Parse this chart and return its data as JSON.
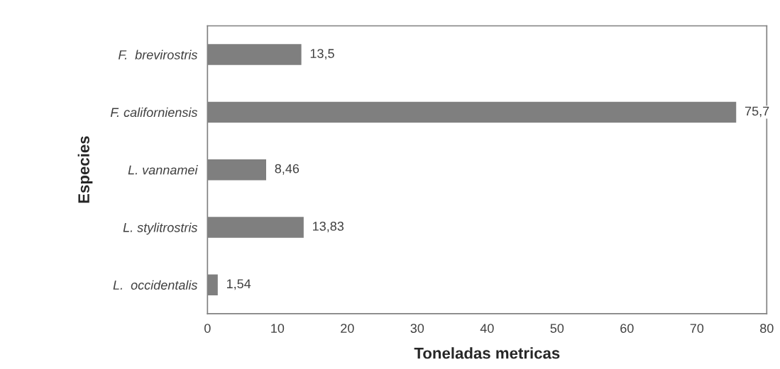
{
  "chart_data": {
    "type": "bar",
    "orientation": "horizontal",
    "xlabel": "Toneladas metricas",
    "ylabel": "Especies",
    "categories": [
      "F.  brevirostris",
      "F. californiensis",
      "L. vannamei",
      "L. stylitrostris",
      "L.  occidentalis"
    ],
    "values": [
      13.5,
      75.7,
      8.46,
      13.83,
      1.54
    ],
    "value_labels": [
      "13,5",
      "75,7",
      "8,46",
      "13,83",
      "1,54"
    ],
    "color": "#7f7f7f",
    "xlim": [
      0,
      80
    ],
    "xticks": [
      0,
      10,
      20,
      30,
      40,
      50,
      60,
      70,
      80
    ],
    "grid": false
  }
}
